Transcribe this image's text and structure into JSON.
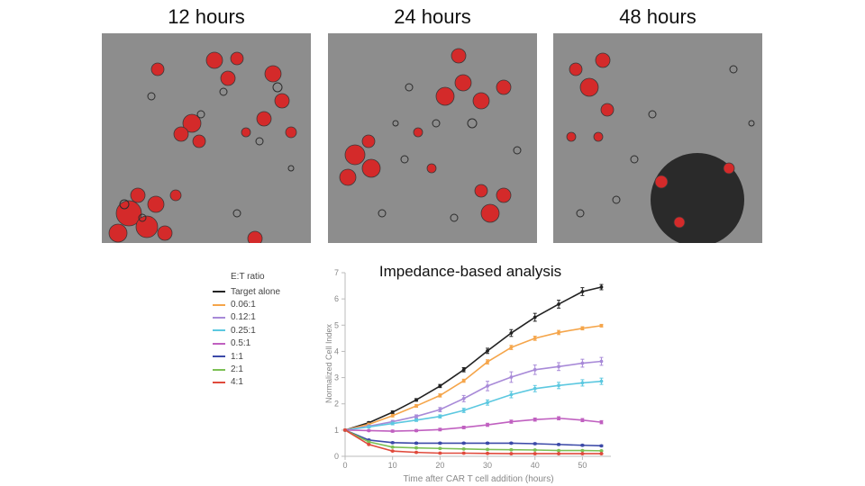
{
  "panels": [
    {
      "title": "12 hours"
    },
    {
      "title": "24 hours"
    },
    {
      "title": "48 hours"
    }
  ],
  "chart_data": {
    "type": "line",
    "title": "Impedance-based analysis",
    "xlabel": "Time after CAR T cell addition (hours)",
    "ylabel": "Normalized Cell Index",
    "xlim": [
      0,
      56
    ],
    "ylim": [
      0,
      7
    ],
    "xticks": [
      0,
      10,
      20,
      30,
      40,
      50
    ],
    "yticks": [
      0,
      1,
      2,
      3,
      4,
      5,
      6,
      7
    ],
    "legend_title": "E:T ratio",
    "legend_position": "left",
    "grid": false,
    "error_bars": true,
    "x": [
      0,
      5,
      10,
      15,
      20,
      25,
      30,
      35,
      40,
      45,
      50,
      54
    ],
    "series": [
      {
        "name": "Target alone",
        "color": "#222222",
        "values": [
          1.0,
          1.28,
          1.68,
          2.15,
          2.68,
          3.3,
          4.02,
          4.7,
          5.3,
          5.8,
          6.28,
          6.45
        ],
        "errors": [
          0.03,
          0.04,
          0.05,
          0.05,
          0.06,
          0.08,
          0.1,
          0.13,
          0.15,
          0.15,
          0.15,
          0.1
        ]
      },
      {
        "name": "0.06:1",
        "color": "#f5a54a",
        "values": [
          1.0,
          1.22,
          1.55,
          1.92,
          2.32,
          2.88,
          3.6,
          4.15,
          4.5,
          4.72,
          4.88,
          4.98
        ],
        "errors": [
          0.03,
          0.04,
          0.05,
          0.05,
          0.06,
          0.06,
          0.08,
          0.08,
          0.08,
          0.08,
          0.06,
          0.05
        ]
      },
      {
        "name": "0.12:1",
        "color": "#a88ad8",
        "values": [
          1.0,
          1.15,
          1.32,
          1.52,
          1.78,
          2.2,
          2.68,
          3.02,
          3.3,
          3.42,
          3.55,
          3.62
        ],
        "errors": [
          0.03,
          0.04,
          0.05,
          0.06,
          0.08,
          0.12,
          0.18,
          0.2,
          0.18,
          0.15,
          0.15,
          0.15
        ]
      },
      {
        "name": "0.25:1",
        "color": "#5cc8e0",
        "values": [
          1.0,
          1.12,
          1.25,
          1.38,
          1.52,
          1.75,
          2.05,
          2.35,
          2.58,
          2.7,
          2.8,
          2.86
        ],
        "errors": [
          0.03,
          0.04,
          0.05,
          0.05,
          0.06,
          0.08,
          0.1,
          0.12,
          0.12,
          0.12,
          0.12,
          0.12
        ]
      },
      {
        "name": "0.5:1",
        "color": "#c060c0",
        "values": [
          1.0,
          0.98,
          0.96,
          0.98,
          1.02,
          1.1,
          1.2,
          1.32,
          1.4,
          1.45,
          1.38,
          1.3
        ],
        "errors": [
          0.03,
          0.03,
          0.04,
          0.04,
          0.05,
          0.05,
          0.06,
          0.06,
          0.06,
          0.06,
          0.06,
          0.06
        ]
      },
      {
        "name": "1:1",
        "color": "#3c4aa8",
        "values": [
          1.0,
          0.62,
          0.52,
          0.5,
          0.5,
          0.5,
          0.5,
          0.5,
          0.48,
          0.45,
          0.42,
          0.4
        ],
        "errors": [
          0.03,
          0.03,
          0.03,
          0.03,
          0.03,
          0.03,
          0.03,
          0.03,
          0.03,
          0.03,
          0.03,
          0.03
        ]
      },
      {
        "name": "2:1",
        "color": "#7cc055",
        "values": [
          1.0,
          0.55,
          0.35,
          0.32,
          0.3,
          0.28,
          0.26,
          0.25,
          0.24,
          0.22,
          0.22,
          0.21
        ],
        "errors": [
          0.03,
          0.03,
          0.02,
          0.02,
          0.02,
          0.02,
          0.02,
          0.02,
          0.02,
          0.02,
          0.02,
          0.02
        ]
      },
      {
        "name": "4:1",
        "color": "#e04a3c",
        "values": [
          1.0,
          0.45,
          0.2,
          0.15,
          0.12,
          0.12,
          0.11,
          0.1,
          0.1,
          0.1,
          0.1,
          0.1
        ],
        "errors": [
          0.03,
          0.02,
          0.02,
          0.02,
          0.02,
          0.02,
          0.02,
          0.02,
          0.02,
          0.02,
          0.02,
          0.02
        ]
      }
    ]
  }
}
